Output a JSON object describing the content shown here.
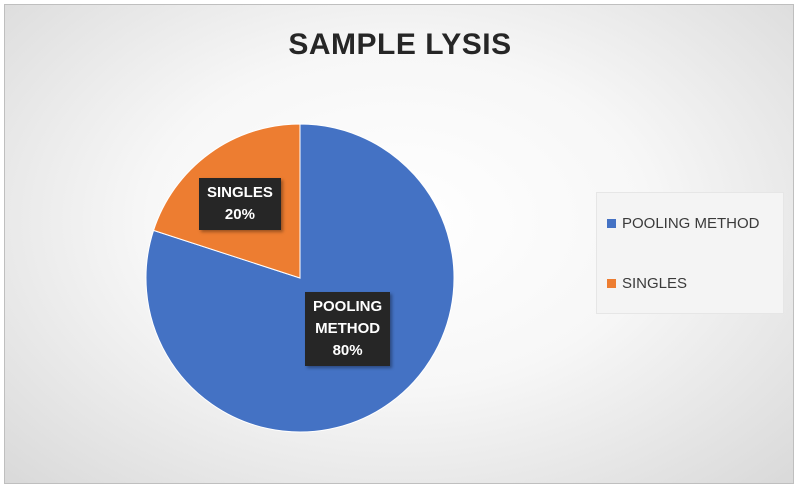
{
  "chart_data": {
    "type": "pie",
    "title": "SAMPLE LYSIS",
    "categories": [
      "POOLING METHOD",
      "SINGLES"
    ],
    "values": [
      80,
      20
    ],
    "value_labels": [
      "80%",
      "20%"
    ],
    "colors": [
      "#4472c4",
      "#ed7d31"
    ],
    "legend_position": "right",
    "data_labels": [
      {
        "line1": "POOLING",
        "line2": "METHOD",
        "line3": "80%"
      },
      {
        "line1": "SINGLES",
        "line2": "20%"
      }
    ]
  }
}
